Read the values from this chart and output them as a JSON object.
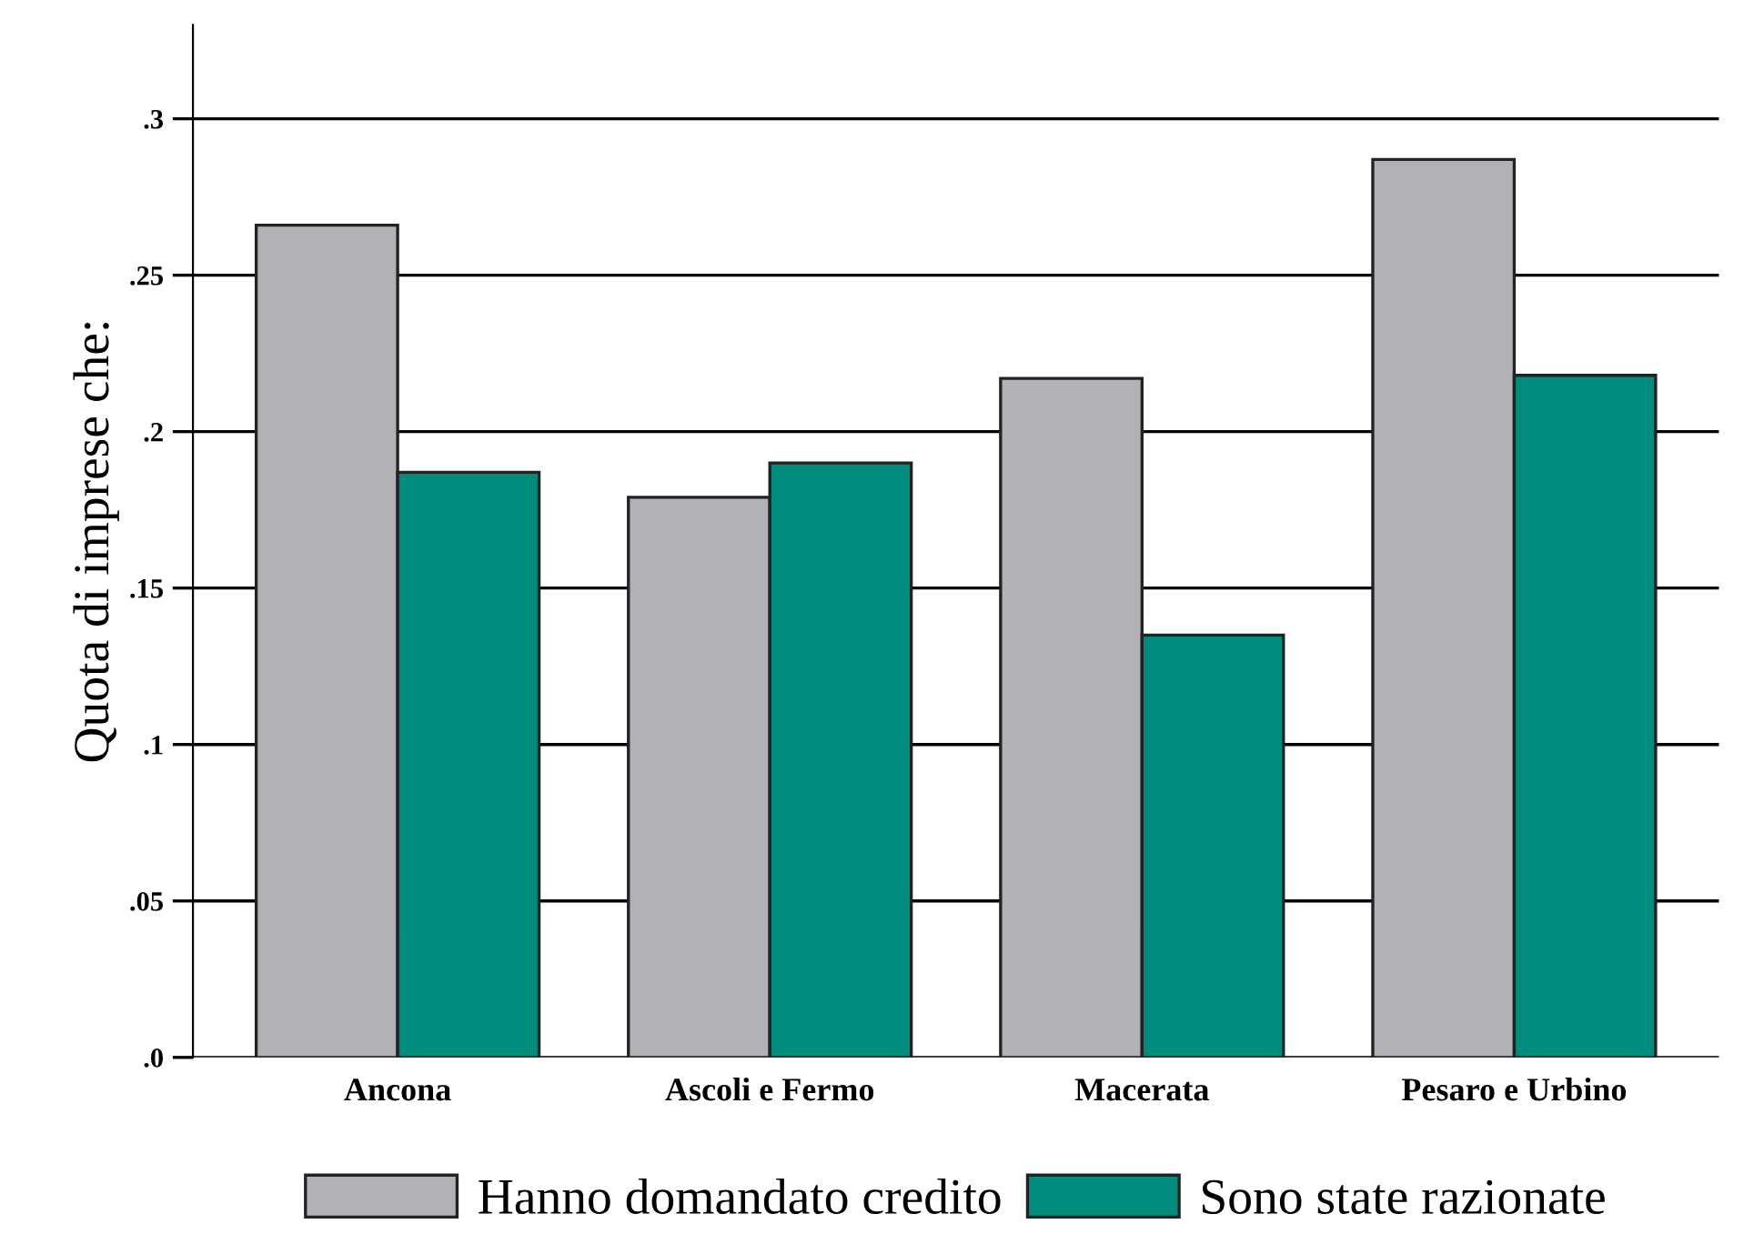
{
  "chart_data": {
    "type": "bar",
    "ylabel": "Quota di imprese che:",
    "categories": [
      "Ancona",
      "Ascoli e Fermo",
      "Macerata",
      "Pesaro e Urbino"
    ],
    "series": [
      {
        "name": "Hanno domandato credito",
        "color": "#b2b2b6",
        "values": [
          0.266,
          0.179,
          0.217,
          0.287
        ]
      },
      {
        "name": "Sono state razionate",
        "color": "#008c7c",
        "values": [
          0.187,
          0.19,
          0.135,
          0.218
        ]
      }
    ],
    "ylim": [
      0,
      0.33
    ],
    "yticks": [
      {
        "value": 0,
        "label": ".0"
      },
      {
        "value": 0.05,
        "label": ".05"
      },
      {
        "value": 0.1,
        "label": ".1"
      },
      {
        "value": 0.15,
        "label": ".15"
      },
      {
        "value": 0.2,
        "label": ".2"
      },
      {
        "value": 0.25,
        "label": ".25"
      },
      {
        "value": 0.3,
        "label": ".3"
      }
    ],
    "grid": "y",
    "legend": "bottom"
  }
}
